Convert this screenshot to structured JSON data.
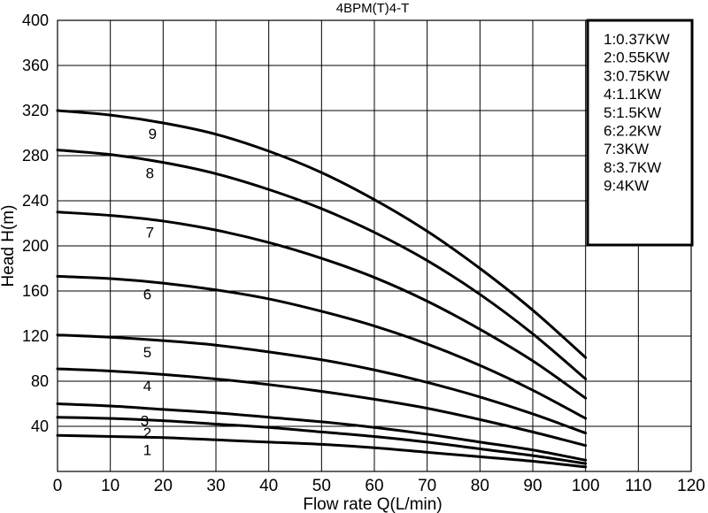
{
  "chart_data": {
    "type": "line",
    "title": "4BPM(T)4-T",
    "xlabel": "Flow rate Q(L/min)",
    "ylabel": "Head H(m)",
    "xlim": [
      0,
      120
    ],
    "ylim": [
      0,
      400
    ],
    "xticks": [
      "0",
      "10",
      "20",
      "30",
      "40",
      "50",
      "60",
      "70",
      "80",
      "90",
      "100",
      "110",
      "120"
    ],
    "yticks": [
      "40",
      "80",
      "120",
      "160",
      "200",
      "240",
      "280",
      "320",
      "360",
      "400"
    ],
    "grid": true,
    "legend_position": "top-right",
    "legend": [
      "1:0.37KW",
      "2:0.55KW",
      "3:0.75KW",
      "4:1.1KW",
      "5:1.5KW",
      "6:2.2KW",
      "7:3KW",
      "8:3.7KW",
      "9:4KW"
    ],
    "x": [
      0,
      10,
      20,
      30,
      40,
      50,
      60,
      70,
      80,
      90,
      100
    ],
    "series": [
      {
        "label": "1",
        "values": [
          32,
          31,
          30,
          28,
          26,
          24,
          21,
          17,
          13,
          9,
          4
        ]
      },
      {
        "label": "2",
        "values": [
          48,
          47,
          45,
          42,
          39,
          35,
          31,
          26,
          20,
          14,
          7
        ]
      },
      {
        "label": "3",
        "values": [
          60,
          58,
          55,
          52,
          48,
          44,
          39,
          33,
          26,
          19,
          10
        ]
      },
      {
        "label": "4",
        "values": [
          91,
          89,
          86,
          82,
          77,
          71,
          64,
          56,
          46,
          35,
          23
        ]
      },
      {
        "label": "5",
        "values": [
          121,
          119,
          116,
          112,
          106,
          99,
          90,
          79,
          66,
          51,
          34
        ]
      },
      {
        "label": "6",
        "values": [
          173,
          171,
          167,
          161,
          153,
          142,
          129,
          113,
          94,
          72,
          47
        ]
      },
      {
        "label": "7",
        "values": [
          230,
          227,
          222,
          214,
          203,
          189,
          172,
          151,
          126,
          98,
          65
        ]
      },
      {
        "label": "8",
        "values": [
          285,
          281,
          274,
          264,
          250,
          233,
          212,
          187,
          157,
          122,
          82
        ]
      },
      {
        "label": "9",
        "values": [
          320,
          316,
          309,
          299,
          284,
          265,
          241,
          213,
          180,
          143,
          101
        ]
      }
    ],
    "curve_label_x": [
      17,
      17,
      16.5,
      17,
      17,
      17,
      17.5,
      17.5,
      18
    ]
  }
}
